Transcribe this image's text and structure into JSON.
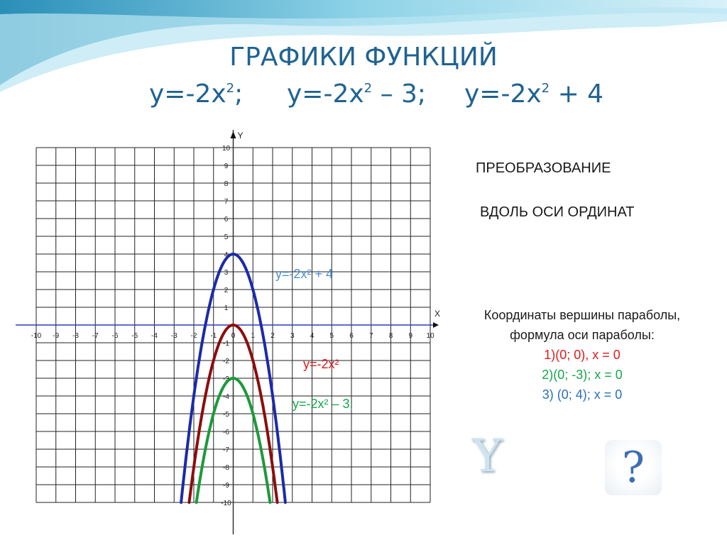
{
  "slide": {
    "title": "ГРАФИКИ ФУНКЦИЙ",
    "formulas": [
      {
        "base": "y=-2x",
        "exp": "2",
        "tail": ";"
      },
      {
        "base": "y=-2x",
        "exp": "2",
        "tail": " – 3;"
      },
      {
        "base": "y=-2x",
        "exp": "2",
        "tail": " + 4"
      }
    ]
  },
  "right_panel": {
    "transform_line_1": "ПРЕОБРАЗОВАНИЕ",
    "transform_line_2": "ВДОЛЬ ОСИ ОРДИНАТ",
    "coords_heading_1": "Координаты вершины параболы,",
    "coords_heading_2": "формула оси параболы:",
    "coords": [
      {
        "text": "1)(0; 0), x = 0",
        "color": "#e0191b"
      },
      {
        "text": "2)(0; -3); x = 0",
        "color": "#14a84a"
      },
      {
        "text": "3) (0; 4); x = 0",
        "color": "#2a6fba"
      }
    ],
    "logo_letter": "Y",
    "help_symbol": "?"
  },
  "colors": {
    "title": "#1f6391",
    "axis_x": "#2a3fb0"
  },
  "chart_data": {
    "type": "line",
    "x_axis_name": "X",
    "y_axis_name": "Y",
    "xlim": [
      -10,
      10
    ],
    "ylim": [
      -10,
      10
    ],
    "grid": true,
    "x_ticks": [
      "-10",
      "-9",
      "-8",
      "-7",
      "-6",
      "-5",
      "-4",
      "-3",
      "-2",
      "-1",
      "0",
      "1",
      "2",
      "3",
      "4",
      "5",
      "6",
      "7",
      "8",
      "9",
      "10"
    ],
    "y_ticks": [
      "10",
      "9",
      "8",
      "7",
      "6",
      "5",
      "4",
      "3",
      "2",
      "1",
      "-1",
      "-2",
      "-3",
      "-4",
      "-5",
      "-6",
      "-7",
      "-8",
      "-9",
      "-10"
    ],
    "series": [
      {
        "name": "y=-2x² + 4",
        "color": "#1c2aa8",
        "label_color": "#4a8fd0",
        "a": -2,
        "c": 4,
        "x": [
          -2.65,
          -2,
          -1.5,
          -1,
          -0.5,
          0,
          0.5,
          1,
          1.5,
          2,
          2.65
        ],
        "y": [
          -10,
          -4,
          -0.5,
          2,
          3.5,
          4,
          3.5,
          2,
          -0.5,
          -4,
          -10
        ]
      },
      {
        "name": "y=-2x²",
        "color": "#8b0d0d",
        "label_color": "#e0191b",
        "a": -2,
        "c": 0,
        "x": [
          -2.25,
          -2,
          -1.5,
          -1,
          -0.5,
          0,
          0.5,
          1,
          1.5,
          2,
          2.25
        ],
        "y": [
          -10,
          -8,
          -4.5,
          -2,
          -0.5,
          0,
          -0.5,
          -2,
          -4.5,
          -8,
          -10
        ]
      },
      {
        "name": "y=-2x² – 3;",
        "color": "#1c9a3a",
        "label_color": "#14a84a",
        "a": -2,
        "c": -3,
        "x": [
          -1.85,
          -1.5,
          -1,
          -0.5,
          0,
          0.5,
          1,
          1.5,
          1.85
        ],
        "y": [
          -10,
          -7.5,
          -5,
          -3.5,
          -3,
          -3.5,
          -5,
          -7.5,
          -10
        ]
      }
    ]
  }
}
